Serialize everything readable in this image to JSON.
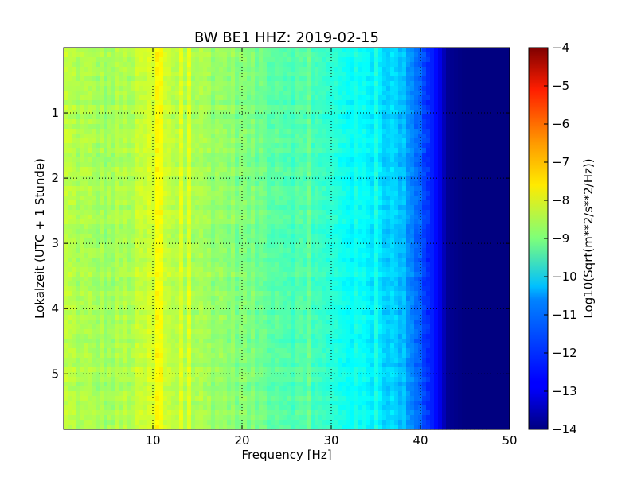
{
  "chart_data": {
    "type": "heatmap",
    "title": "BW BE1 HHZ: 2019-02-15",
    "xlabel": "Frequency [Hz]",
    "ylabel": "Lokalzeit (UTC + 1 Stunde)",
    "xlim": [
      0,
      50
    ],
    "ylim": [
      5.85,
      0
    ],
    "x_ticks": [
      10,
      20,
      30,
      40,
      50
    ],
    "y_ticks": [
      1,
      2,
      3,
      4,
      5
    ],
    "grid": true,
    "colormap": "jet",
    "colorbar": {
      "label": "Log10(Sqrt(m**2/s**2/Hz))",
      "min": -14,
      "max": -4,
      "ticks": [
        -4,
        -5,
        -6,
        -7,
        -8,
        -9,
        -10,
        -11,
        -12,
        -13,
        -14
      ]
    },
    "frequency_profile": {
      "x": [
        0,
        2,
        5,
        8,
        10,
        12,
        15,
        18,
        20,
        25,
        28,
        30,
        33,
        35,
        38,
        40,
        42,
        43,
        45,
        50
      ],
      "values": [
        -8.4,
        -8.6,
        -8.7,
        -8.5,
        -8.2,
        -8.4,
        -8.6,
        -8.8,
        -9.0,
        -9.4,
        -9.6,
        -9.9,
        -10.2,
        -10.4,
        -10.9,
        -11.8,
        -12.8,
        -13.8,
        -14.0,
        -14.0
      ]
    }
  }
}
